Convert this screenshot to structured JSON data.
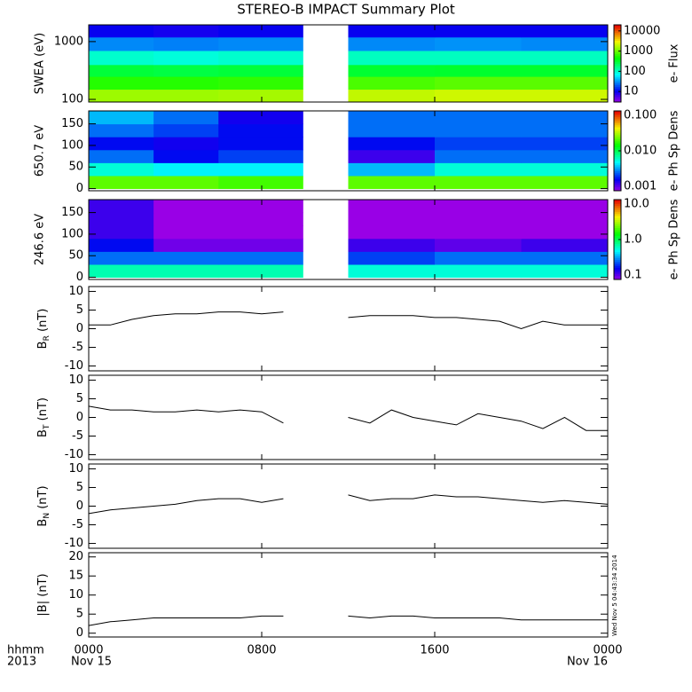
{
  "title": "STEREO-B IMPACT Summary Plot",
  "x_axis": {
    "xlim": [
      0,
      24
    ],
    "xticks": [
      {
        "value": 0,
        "label": "0000"
      },
      {
        "value": 8,
        "label": "0800"
      },
      {
        "value": 16,
        "label": "1600"
      },
      {
        "value": 24,
        "label": "0000"
      }
    ],
    "unit_label": "hhmm",
    "year_label": "2013",
    "start_date": "Nov 15",
    "end_date": "Nov 16"
  },
  "annotation": "Wed Nov 5 04:43:34 2014",
  "chart_data": [
    {
      "type": "heatmap",
      "ylabel": "SWEA (eV)",
      "colorbar_label": "e- Flux",
      "ylog": true,
      "ylim": [
        90,
        1950
      ],
      "yticks": [
        100,
        1000
      ],
      "clim": [
        3,
        20000
      ],
      "ctick": [
        10,
        100,
        1000,
        10000
      ],
      "x_edges": [
        0,
        3,
        6,
        9.9,
        12,
        16,
        20,
        24
      ],
      "y_edges": [
        90,
        150,
        250,
        400,
        700,
        1200,
        1950
      ],
      "z": [
        [
          1500,
          1500,
          1600,
          null,
          2000,
          2200,
          2200
        ],
        [
          600,
          600,
          650,
          null,
          800,
          900,
          900
        ],
        [
          300,
          280,
          300,
          null,
          320,
          330,
          330
        ],
        [
          100,
          90,
          100,
          null,
          110,
          110,
          110
        ],
        [
          30,
          28,
          30,
          null,
          30,
          32,
          30
        ],
        [
          10,
          9,
          10,
          null,
          10,
          10,
          10
        ]
      ]
    },
    {
      "type": "heatmap",
      "ylabel": "650.7 eV",
      "colorbar_label": "e- Ph Sp Dens",
      "ylog": false,
      "ylim": [
        -5,
        180
      ],
      "yticks": [
        0,
        50,
        100,
        150
      ],
      "clim": [
        0.001,
        0.1
      ],
      "ctick": [
        0.001,
        {
          "value": 0.01,
          "label": "0.010"
        },
        {
          "value": 0.1,
          "label": "0.100"
        }
      ],
      "x_edges": [
        0,
        3,
        6,
        9.9,
        12,
        16,
        20,
        24
      ],
      "y_edges": [
        0,
        30,
        60,
        90,
        120,
        150,
        180
      ],
      "z": [
        [
          0.02,
          0.02,
          0.018,
          null,
          0.02,
          0.02,
          0.02
        ],
        [
          0.006,
          0.005,
          0.005,
          null,
          0.004,
          0.006,
          0.006
        ],
        [
          0.003,
          0.002,
          0.0025,
          null,
          0.0015,
          0.003,
          0.003
        ],
        [
          0.002,
          0.0018,
          0.002,
          null,
          0.002,
          0.0025,
          0.0025
        ],
        [
          0.003,
          0.0025,
          0.002,
          null,
          0.003,
          0.003,
          0.003
        ],
        [
          0.004,
          0.003,
          0.0018,
          null,
          0.003,
          0.003,
          0.003
        ]
      ]
    },
    {
      "type": "heatmap",
      "ylabel": "246.6 eV",
      "colorbar_label": "e- Ph Sp Dens",
      "ylog": false,
      "ylim": [
        -5,
        180
      ],
      "yticks": [
        0,
        50,
        100,
        150
      ],
      "clim": [
        0.1,
        10
      ],
      "ctick": [
        {
          "value": 0.1,
          "label": "0.1"
        },
        {
          "value": 1,
          "label": "1.0"
        },
        {
          "value": 10,
          "label": "10.0"
        }
      ],
      "x_edges": [
        0,
        3,
        6,
        9.9,
        12,
        16,
        20,
        24
      ],
      "y_edges": [
        0,
        30,
        60,
        90,
        120,
        150,
        180
      ],
      "z": [
        [
          0.7,
          0.7,
          0.7,
          null,
          0.6,
          0.6,
          0.6
        ],
        [
          0.3,
          0.3,
          0.3,
          null,
          0.25,
          0.3,
          0.3
        ],
        [
          0.2,
          0.12,
          0.12,
          null,
          0.15,
          0.13,
          0.15
        ],
        [
          0.15,
          0.1,
          0.1,
          null,
          0.1,
          0.1,
          0.1
        ],
        [
          0.15,
          0.1,
          0.1,
          null,
          0.1,
          0.1,
          0.1
        ],
        [
          0.15,
          0.1,
          0.1,
          null,
          0.1,
          0.1,
          0.1
        ]
      ]
    },
    {
      "type": "line",
      "ylabel": "B",
      "ylabel_sub": "R",
      "ylabel_unit": "(nT)",
      "ylim": [
        -11.3,
        11.3
      ],
      "yticks": [
        -10,
        -5,
        0,
        5,
        10
      ],
      "x": [
        0,
        1,
        2,
        3,
        4,
        5,
        6,
        7,
        8,
        9,
        10,
        11,
        12,
        13,
        14,
        15,
        16,
        17,
        18,
        19,
        20,
        21,
        22,
        23,
        24
      ],
      "values": [
        1,
        1,
        2.5,
        3.5,
        4,
        4,
        4.5,
        4.5,
        4,
        4.5,
        null,
        null,
        3,
        3.5,
        3.5,
        3.5,
        3,
        3,
        2.5,
        2,
        0,
        2,
        1,
        1,
        1
      ]
    },
    {
      "type": "line",
      "ylabel": "B",
      "ylabel_sub": "T",
      "ylabel_unit": "(nT)",
      "ylim": [
        -11.3,
        11.3
      ],
      "yticks": [
        -10,
        -5,
        0,
        5,
        10
      ],
      "x": [
        0,
        1,
        2,
        3,
        4,
        5,
        6,
        7,
        8,
        9,
        10,
        11,
        12,
        13,
        14,
        15,
        16,
        17,
        18,
        19,
        20,
        21,
        22,
        23,
        24
      ],
      "values": [
        3,
        2,
        2,
        1.5,
        1.5,
        2,
        1.5,
        2,
        1.5,
        -1.5,
        null,
        null,
        0,
        -1.5,
        2,
        0,
        -1,
        -2,
        1,
        0,
        -1,
        -3,
        0,
        -3.5,
        -3.5
      ]
    },
    {
      "type": "line",
      "ylabel": "B",
      "ylabel_sub": "N",
      "ylabel_unit": "(nT)",
      "ylim": [
        -11.3,
        11.3
      ],
      "yticks": [
        -10,
        -5,
        0,
        5,
        10
      ],
      "x": [
        0,
        1,
        2,
        3,
        4,
        5,
        6,
        7,
        8,
        9,
        10,
        11,
        12,
        13,
        14,
        15,
        16,
        17,
        18,
        19,
        20,
        21,
        22,
        23,
        24
      ],
      "values": [
        -2,
        -1,
        -0.5,
        0,
        0.5,
        1.5,
        2,
        2,
        1,
        2,
        null,
        null,
        3,
        1.5,
        2,
        2,
        3,
        2.5,
        2.5,
        2,
        1.5,
        1,
        1.5,
        1,
        0.5
      ]
    },
    {
      "type": "line",
      "ylabel": "|B|",
      "ylabel_unit": "(nT)",
      "ylim": [
        -1,
        21.1
      ],
      "yticks": [
        0,
        5,
        10,
        15,
        20
      ],
      "x": [
        0,
        1,
        2,
        3,
        4,
        5,
        6,
        7,
        8,
        9,
        10,
        11,
        12,
        13,
        14,
        15,
        16,
        17,
        18,
        19,
        20,
        21,
        22,
        23,
        24
      ],
      "values": [
        2,
        3,
        3.5,
        4,
        4,
        4,
        4,
        4,
        4.5,
        4.5,
        null,
        null,
        4.5,
        4,
        4.5,
        4.5,
        4,
        4,
        4,
        4,
        3.5,
        3.5,
        3.5,
        3.5,
        3.5
      ]
    }
  ]
}
